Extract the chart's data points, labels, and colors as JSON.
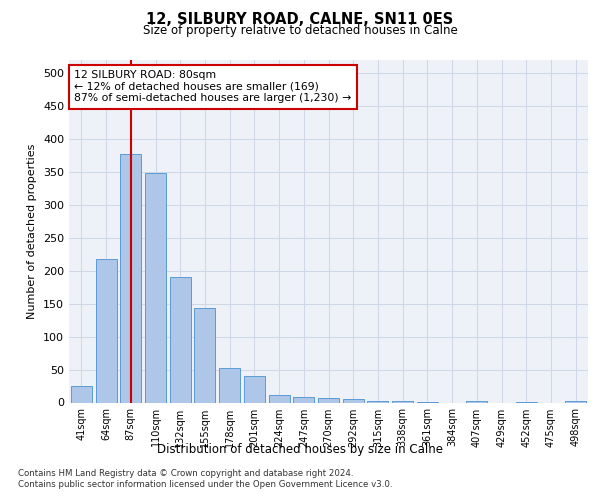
{
  "title1": "12, SILBURY ROAD, CALNE, SN11 0ES",
  "title2": "Size of property relative to detached houses in Calne",
  "xlabel": "Distribution of detached houses by size in Calne",
  "ylabel": "Number of detached properties",
  "categories": [
    "41sqm",
    "64sqm",
    "87sqm",
    "110sqm",
    "132sqm",
    "155sqm",
    "178sqm",
    "201sqm",
    "224sqm",
    "247sqm",
    "270sqm",
    "292sqm",
    "315sqm",
    "338sqm",
    "361sqm",
    "384sqm",
    "407sqm",
    "429sqm",
    "452sqm",
    "475sqm",
    "498sqm"
  ],
  "values": [
    25,
    218,
    378,
    348,
    190,
    144,
    53,
    40,
    12,
    9,
    7,
    5,
    3,
    2,
    1,
    0,
    3,
    0,
    1,
    0,
    3
  ],
  "bar_color": "#aec6e8",
  "bar_edge_color": "#5b9bd5",
  "vline_x": 2,
  "vline_color": "#cc0000",
  "annotation_text": "12 SILBURY ROAD: 80sqm\n← 12% of detached houses are smaller (169)\n87% of semi-detached houses are larger (1,230) →",
  "annotation_box_color": "#ffffff",
  "annotation_box_edge": "#cc0000",
  "ylim": [
    0,
    520
  ],
  "yticks": [
    0,
    50,
    100,
    150,
    200,
    250,
    300,
    350,
    400,
    450,
    500
  ],
  "grid_color": "#d0d8e8",
  "footer1": "Contains HM Land Registry data © Crown copyright and database right 2024.",
  "footer2": "Contains public sector information licensed under the Open Government Licence v3.0.",
  "bg_color": "#eef2f8"
}
